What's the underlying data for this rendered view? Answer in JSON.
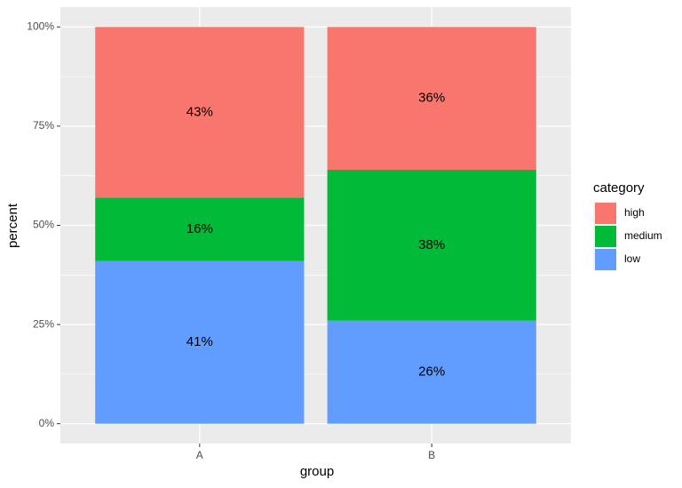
{
  "chart_data": {
    "type": "stacked_bar",
    "x_label": "group",
    "y_label": "percent",
    "categories": [
      "A",
      "B"
    ],
    "series": [
      {
        "name": "high",
        "color": "#F8766D",
        "values": [
          43,
          36
        ],
        "value_labels": [
          "43%",
          "36%"
        ]
      },
      {
        "name": "medium",
        "color": "#00BA38",
        "values": [
          16,
          38
        ],
        "value_labels": [
          "16%",
          "38%"
        ]
      },
      {
        "name": "low",
        "color": "#619CFF",
        "values": [
          41,
          26
        ],
        "value_labels": [
          "41%",
          "26%"
        ]
      }
    ],
    "ylim": [
      -5,
      105
    ],
    "yticks": [
      {
        "value": 0,
        "label": "0%"
      },
      {
        "value": 25,
        "label": "25%"
      },
      {
        "value": 50,
        "label": "50%"
      },
      {
        "value": 75,
        "label": "75%"
      },
      {
        "value": 100,
        "label": "100%"
      }
    ],
    "grid": true,
    "legend_title": "category",
    "legend_position": "right"
  }
}
